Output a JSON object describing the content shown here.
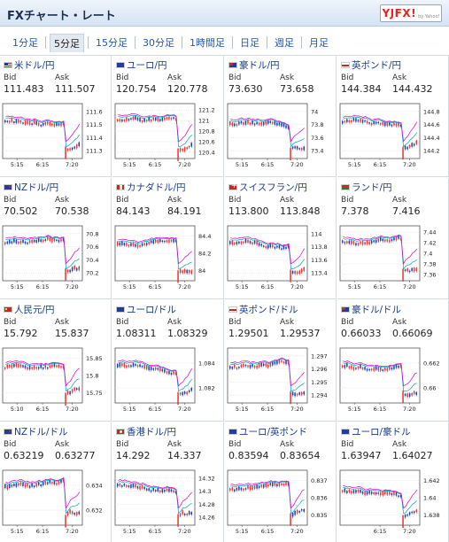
{
  "header": {
    "title": "FXチャート・レート",
    "logo_text": "YJFX!",
    "logo_sub": "by Yahoo!"
  },
  "tabs": [
    {
      "label": "1分足",
      "active": false
    },
    {
      "label": "5分足",
      "active": true
    },
    {
      "label": "15分足",
      "active": false
    },
    {
      "label": "30分足",
      "active": false
    },
    {
      "label": "1時間足",
      "active": false
    },
    {
      "label": "日足",
      "active": false
    },
    {
      "label": "週足",
      "active": false
    },
    {
      "label": "月足",
      "active": false
    }
  ],
  "labels": {
    "bid": "Bid",
    "ask": "Ask"
  },
  "pairs": [
    {
      "name": "米ドル/円",
      "flag": "us",
      "bid": "111.483",
      "ask": "111.507",
      "yticks": [
        "111.6",
        "111.5",
        "111.4",
        "111.3"
      ],
      "xticks": [
        "5:15",
        "6:15",
        "7:20"
      ]
    },
    {
      "name": "ユーロ/円",
      "flag": "eu",
      "bid": "120.754",
      "ask": "120.778",
      "yticks": [
        "121.2",
        "121",
        "120.8",
        "120.6",
        "120.4"
      ],
      "xticks": [
        "5:15",
        "6:15",
        "7:20"
      ]
    },
    {
      "name": "豪ドル/円",
      "flag": "au",
      "bid": "73.630",
      "ask": "73.658",
      "yticks": [
        "74",
        "73.8",
        "73.6",
        "73.4"
      ],
      "xticks": [
        "5:15",
        "6:15",
        "7:20"
      ]
    },
    {
      "name": "英ポンド/円",
      "flag": "gb",
      "bid": "144.384",
      "ask": "144.432",
      "yticks": [
        "144.8",
        "144.6",
        "144.4",
        "144.2"
      ],
      "xticks": [
        "5:15",
        "6:15",
        "7:20"
      ]
    },
    {
      "name": "NZドル/円",
      "flag": "nz",
      "bid": "70.502",
      "ask": "70.538",
      "yticks": [
        "70.8",
        "70.6",
        "70.4",
        "70.2"
      ],
      "xticks": [
        "5:15",
        "6:15",
        "7:20"
      ]
    },
    {
      "name": "カナダドル/円",
      "flag": "ca",
      "bid": "84.143",
      "ask": "84.191",
      "yticks": [
        "84.4",
        "84.2",
        "84"
      ],
      "xticks": [
        "5:15",
        "6:15",
        "7:20"
      ]
    },
    {
      "name": "スイスフラン/円",
      "flag": "ch",
      "bid": "113.800",
      "ask": "113.848",
      "yticks": [
        "114",
        "113.8",
        "113.6",
        "113.4"
      ],
      "xticks": [
        "5:15",
        "6:15",
        "7:20"
      ]
    },
    {
      "name": "ランド/円",
      "flag": "za",
      "bid": "7.378",
      "ask": "7.416",
      "yticks": [
        "7.44",
        "7.42",
        "7.4",
        "7.38",
        "7.36"
      ],
      "xticks": [
        "5:15",
        "6:15",
        "7:20"
      ]
    },
    {
      "name": "人民元/円",
      "flag": "cn",
      "bid": "15.792",
      "ask": "15.837",
      "yticks": [
        "15.85",
        "15.8",
        "15.75"
      ],
      "xticks": [
        "5:10",
        "6:15",
        "7:20"
      ]
    },
    {
      "name": "ユーロ/ドル",
      "flag": "eu",
      "bid": "1.08311",
      "ask": "1.08329",
      "yticks": [
        "1.084",
        "1.082"
      ],
      "xticks": [
        "5:15",
        "6:15",
        "7:20"
      ]
    },
    {
      "name": "英ポンド/ドル",
      "flag": "gb",
      "bid": "1.29501",
      "ask": "1.29537",
      "yticks": [
        "1.297",
        "1.296",
        "1.295",
        "1.294"
      ],
      "xticks": [
        "5:15",
        "6:15",
        "7:20"
      ]
    },
    {
      "name": "豪ドル/ドル",
      "flag": "au",
      "bid": "0.66033",
      "ask": "0.66069",
      "yticks": [
        "0.662",
        "0.66"
      ],
      "xticks": [
        "5:15",
        "6:15",
        "7:20"
      ]
    },
    {
      "name": "NZドル/ドル",
      "flag": "nz",
      "bid": "0.63219",
      "ask": "0.63277",
      "yticks": [
        "0.634",
        "0.632"
      ],
      "xticks": [
        "5:15",
        "6:15",
        "7:20"
      ]
    },
    {
      "name": "香港ドル/円",
      "flag": "hk",
      "bid": "14.292",
      "ask": "14.337",
      "yticks": [
        "14.32",
        "14.3",
        "14.28",
        "14.26"
      ],
      "xticks": [
        "5:15",
        "6:15",
        "7:20"
      ]
    },
    {
      "name": "ユーロ/英ポンド",
      "flag": "eu",
      "bid": "0.83594",
      "ask": "0.83654",
      "yticks": [
        "0.837",
        "0.836",
        "0.835"
      ],
      "xticks": [
        "5:15",
        "6:15",
        "7:20"
      ]
    },
    {
      "name": "ユーロ/豪ドル",
      "flag": "eu",
      "bid": "1.63947",
      "ask": "1.64027",
      "yticks": [
        "1.642",
        "1.64",
        "1.638"
      ],
      "xticks": [
        "6:15",
        "7:20"
      ]
    }
  ]
}
